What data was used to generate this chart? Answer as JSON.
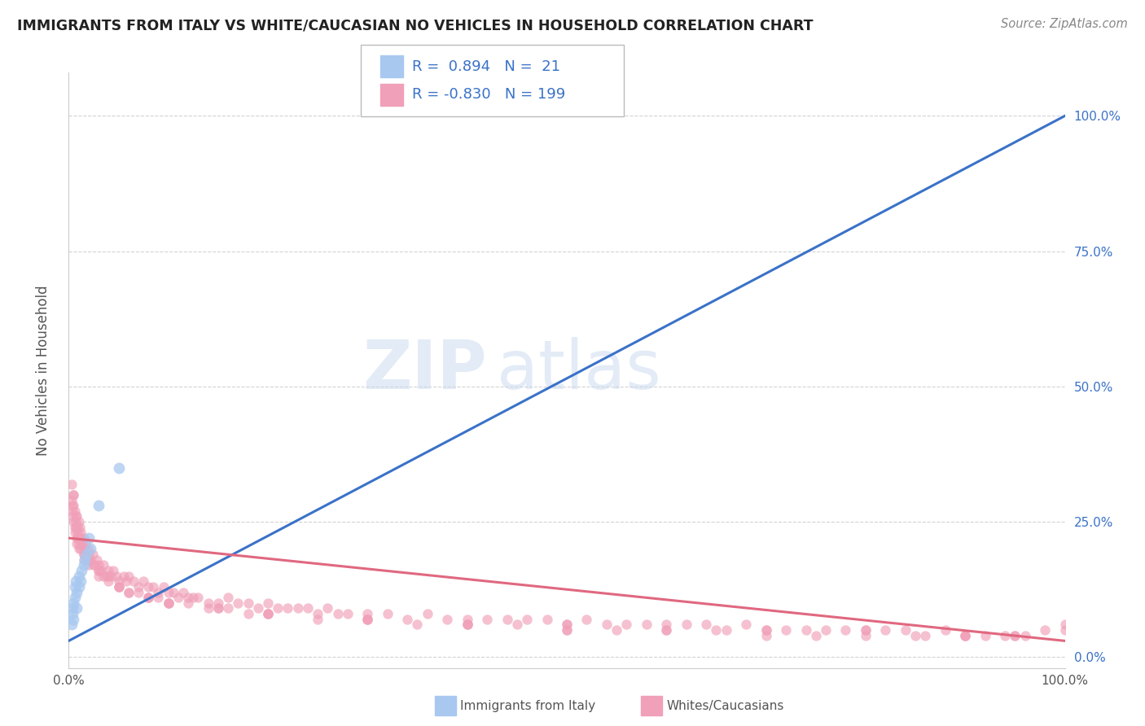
{
  "title": "IMMIGRANTS FROM ITALY VS WHITE/CAUCASIAN NO VEHICLES IN HOUSEHOLD CORRELATION CHART",
  "source": "Source: ZipAtlas.com",
  "ylabel": "No Vehicles in Household",
  "right_yticks": [
    0.0,
    0.25,
    0.5,
    0.75,
    1.0
  ],
  "right_ytick_labels": [
    "0.0%",
    "25.0%",
    "50.0%",
    "75.0%",
    "100.0%"
  ],
  "xlim": [
    0.0,
    1.0
  ],
  "ylim": [
    -0.02,
    1.08
  ],
  "background_color": "#ffffff",
  "grid_color": "#c8c8c8",
  "title_color": "#222222",
  "title_fontsize": 12.5,
  "source_fontsize": 10.5,
  "blue_scatter_color": "#a8c8f0",
  "blue_line_color": "#3a72c8",
  "pink_scatter_color": "#f0a0b8",
  "pink_line_color": "#e06880",
  "watermark_zip": "ZIP",
  "watermark_atlas": "atlas",
  "blue_line_x0": 0.0,
  "blue_line_y0": 0.03,
  "blue_line_x1": 1.0,
  "blue_line_y1": 1.0,
  "pink_line_x0": 0.0,
  "pink_line_y0": 0.22,
  "pink_line_x1": 1.0,
  "pink_line_y1": 0.03,
  "blue_points_x": [
    0.003,
    0.004,
    0.004,
    0.005,
    0.005,
    0.006,
    0.006,
    0.007,
    0.008,
    0.008,
    0.01,
    0.01,
    0.012,
    0.013,
    0.015,
    0.016,
    0.018,
    0.02,
    0.022,
    0.03,
    0.05
  ],
  "blue_points_y": [
    0.06,
    0.08,
    0.09,
    0.07,
    0.1,
    0.11,
    0.13,
    0.14,
    0.09,
    0.12,
    0.13,
    0.15,
    0.14,
    0.16,
    0.17,
    0.18,
    0.19,
    0.22,
    0.2,
    0.28,
    0.35
  ],
  "pink_points_x": [
    0.003,
    0.004,
    0.005,
    0.005,
    0.006,
    0.007,
    0.008,
    0.009,
    0.01,
    0.01,
    0.011,
    0.012,
    0.013,
    0.014,
    0.015,
    0.016,
    0.017,
    0.018,
    0.019,
    0.02,
    0.022,
    0.024,
    0.026,
    0.028,
    0.03,
    0.032,
    0.035,
    0.038,
    0.04,
    0.042,
    0.045,
    0.048,
    0.05,
    0.055,
    0.058,
    0.06,
    0.065,
    0.07,
    0.075,
    0.08,
    0.085,
    0.09,
    0.095,
    0.1,
    0.105,
    0.11,
    0.115,
    0.12,
    0.125,
    0.13,
    0.14,
    0.15,
    0.16,
    0.17,
    0.18,
    0.19,
    0.2,
    0.21,
    0.22,
    0.23,
    0.24,
    0.25,
    0.26,
    0.27,
    0.28,
    0.3,
    0.32,
    0.34,
    0.36,
    0.38,
    0.4,
    0.42,
    0.44,
    0.46,
    0.48,
    0.5,
    0.52,
    0.54,
    0.56,
    0.58,
    0.6,
    0.62,
    0.64,
    0.66,
    0.68,
    0.7,
    0.72,
    0.74,
    0.76,
    0.78,
    0.8,
    0.82,
    0.84,
    0.86,
    0.88,
    0.9,
    0.92,
    0.94,
    0.96,
    0.98,
    0.003,
    0.004,
    0.005,
    0.006,
    0.007,
    0.008,
    0.009,
    0.01,
    0.012,
    0.015,
    0.018,
    0.02,
    0.025,
    0.03,
    0.035,
    0.04,
    0.05,
    0.06,
    0.07,
    0.08,
    0.09,
    0.1,
    0.12,
    0.14,
    0.16,
    0.18,
    0.2,
    0.25,
    0.3,
    0.35,
    0.4,
    0.45,
    0.5,
    0.55,
    0.6,
    0.65,
    0.7,
    0.75,
    0.8,
    0.85,
    0.9,
    0.95,
    1.0,
    0.004,
    0.006,
    0.008,
    0.01,
    0.015,
    0.02,
    0.03,
    0.04,
    0.05,
    0.06,
    0.08,
    0.1,
    0.15,
    0.2,
    0.3,
    0.4,
    0.5,
    0.005,
    0.007,
    0.01,
    0.015,
    0.02,
    0.03,
    0.05,
    0.08,
    0.1,
    0.15,
    0.2,
    0.3,
    0.4,
    0.5,
    0.6,
    0.7,
    0.8,
    0.9,
    0.95,
    1.0
  ],
  "pink_points_y": [
    0.32,
    0.28,
    0.3,
    0.25,
    0.27,
    0.24,
    0.26,
    0.23,
    0.25,
    0.22,
    0.24,
    0.23,
    0.22,
    0.21,
    0.22,
    0.2,
    0.21,
    0.19,
    0.2,
    0.19,
    0.18,
    0.19,
    0.17,
    0.18,
    0.17,
    0.16,
    0.17,
    0.15,
    0.16,
    0.15,
    0.16,
    0.15,
    0.14,
    0.15,
    0.14,
    0.15,
    0.14,
    0.13,
    0.14,
    0.13,
    0.13,
    0.12,
    0.13,
    0.12,
    0.12,
    0.11,
    0.12,
    0.11,
    0.11,
    0.11,
    0.1,
    0.1,
    0.11,
    0.1,
    0.1,
    0.09,
    0.1,
    0.09,
    0.09,
    0.09,
    0.09,
    0.08,
    0.09,
    0.08,
    0.08,
    0.08,
    0.08,
    0.07,
    0.08,
    0.07,
    0.07,
    0.07,
    0.07,
    0.07,
    0.07,
    0.06,
    0.07,
    0.06,
    0.06,
    0.06,
    0.06,
    0.06,
    0.06,
    0.05,
    0.06,
    0.05,
    0.05,
    0.05,
    0.05,
    0.05,
    0.05,
    0.05,
    0.05,
    0.04,
    0.05,
    0.04,
    0.04,
    0.04,
    0.04,
    0.05,
    0.29,
    0.26,
    0.28,
    0.23,
    0.25,
    0.22,
    0.24,
    0.21,
    0.2,
    0.19,
    0.18,
    0.18,
    0.17,
    0.16,
    0.15,
    0.15,
    0.13,
    0.12,
    0.12,
    0.11,
    0.11,
    0.1,
    0.1,
    0.09,
    0.09,
    0.08,
    0.08,
    0.07,
    0.07,
    0.06,
    0.06,
    0.06,
    0.05,
    0.05,
    0.05,
    0.05,
    0.04,
    0.04,
    0.04,
    0.04,
    0.04,
    0.04,
    0.06,
    0.27,
    0.24,
    0.21,
    0.2,
    0.18,
    0.17,
    0.15,
    0.14,
    0.13,
    0.12,
    0.11,
    0.1,
    0.09,
    0.08,
    0.07,
    0.06,
    0.05,
    0.3,
    0.26,
    0.22,
    0.19,
    0.18,
    0.16,
    0.13,
    0.11,
    0.1,
    0.09,
    0.08,
    0.07,
    0.06,
    0.06,
    0.05,
    0.05,
    0.05,
    0.04,
    0.04,
    0.05
  ]
}
